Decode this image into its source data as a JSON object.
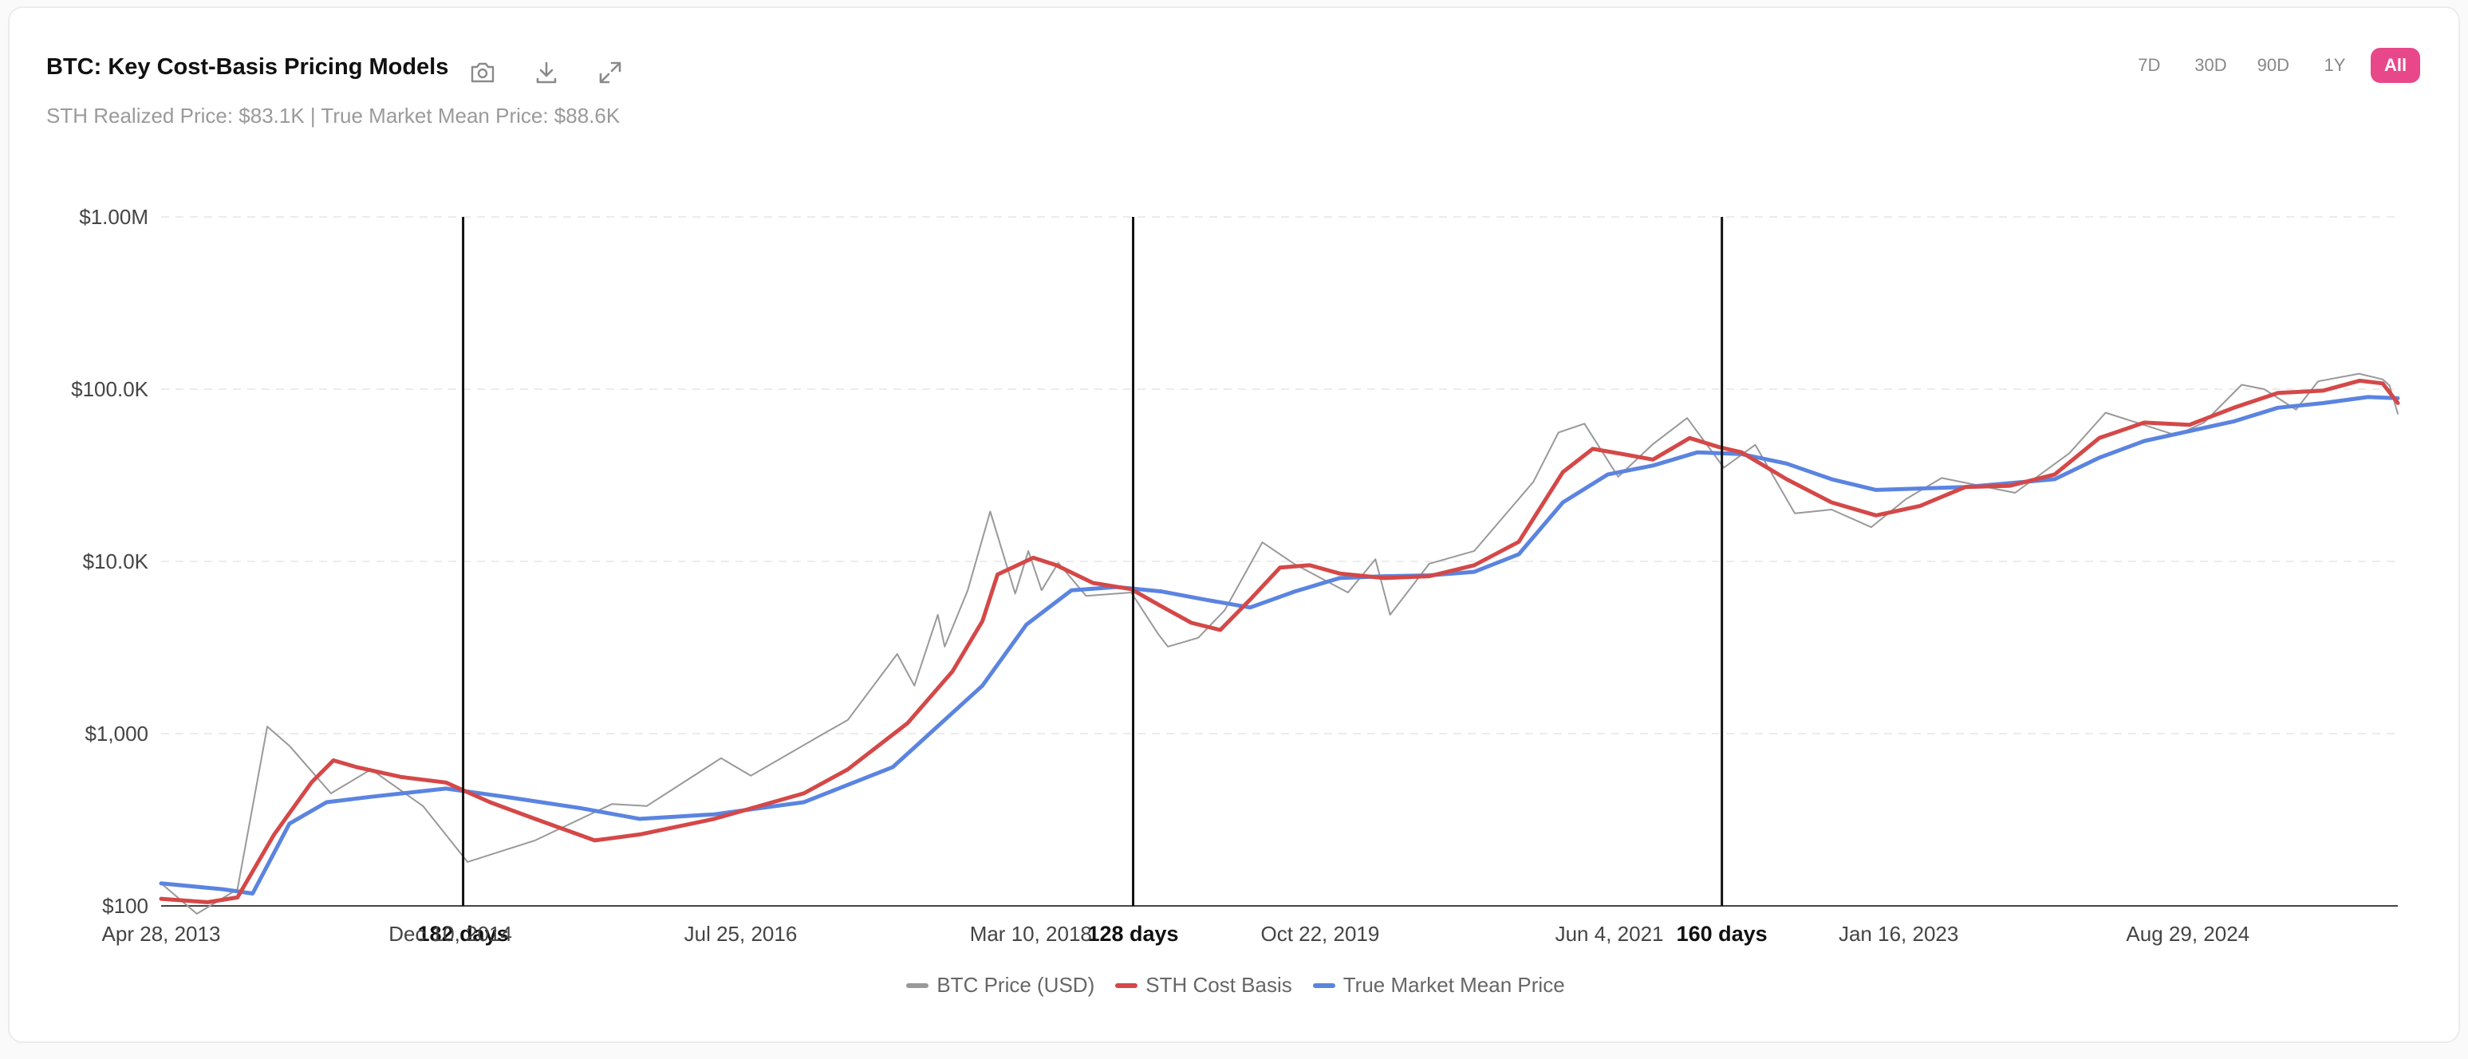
{
  "header": {
    "title": "BTC: Key Cost-Basis Pricing Models",
    "subtitle": "STH Realized Price: $83.1K | True Market Mean Price: $88.6K"
  },
  "toolbar": {
    "icons": [
      "camera-icon",
      "download-icon",
      "expand-icon"
    ]
  },
  "ranges": [
    {
      "label": "7D",
      "active": false
    },
    {
      "label": "30D",
      "active": false
    },
    {
      "label": "90D",
      "active": false
    },
    {
      "label": "1Y",
      "active": false
    },
    {
      "label": "All",
      "active": true
    }
  ],
  "colors": {
    "btc": "#999999",
    "sth": "#d44848",
    "tmm": "#5b84e0",
    "accent": "#e8488a"
  },
  "chart_data": {
    "type": "line",
    "title": "BTC: Key Cost-Basis Pricing Models",
    "y_scale": "log",
    "ylim": [
      100,
      1000000
    ],
    "xlim": [
      "2013-04-28",
      "2025-11-01"
    ],
    "y_ticks": [
      {
        "v": 100,
        "label": "$100"
      },
      {
        "v": 1000,
        "label": "$1,000"
      },
      {
        "v": 10000,
        "label": "$10.0K"
      },
      {
        "v": 100000,
        "label": "$100.0K"
      },
      {
        "v": 1000000,
        "label": "$1.00M"
      }
    ],
    "x_ticks": [
      {
        "date": "2013-04-28",
        "label": "Apr 28, 2013"
      },
      {
        "date": "2014-12-10",
        "label": "Dec 10, 2014"
      },
      {
        "date": "2016-07-25",
        "label": "Jul 25, 2016"
      },
      {
        "date": "2018-03-10",
        "label": "Mar 10, 2018"
      },
      {
        "date": "2019-10-22",
        "label": "Oct 22, 2019"
      },
      {
        "date": "2021-06-04",
        "label": "Jun 4, 2021"
      },
      {
        "date": "2023-01-16",
        "label": "Jan 16, 2023"
      },
      {
        "date": "2024-08-29",
        "label": "Aug 29, 2024"
      }
    ],
    "annotations": [
      {
        "date": "2015-01-05",
        "label": "182 days"
      },
      {
        "date": "2018-10-05",
        "label": "128 days"
      },
      {
        "date": "2022-01-20",
        "label": "160 days"
      }
    ],
    "legend_position": "bottom",
    "series": [
      {
        "name": "BTC Price (USD)",
        "key": "btc",
        "points": [
          [
            "2013-04-28",
            135
          ],
          [
            "2013-07-10",
            90
          ],
          [
            "2013-10-01",
            125
          ],
          [
            "2013-12-01",
            1100
          ],
          [
            "2014-01-15",
            850
          ],
          [
            "2014-04-10",
            450
          ],
          [
            "2014-07-01",
            620
          ],
          [
            "2014-10-15",
            380
          ],
          [
            "2015-01-14",
            180
          ],
          [
            "2015-06-01",
            240
          ],
          [
            "2015-11-05",
            390
          ],
          [
            "2016-01-15",
            380
          ],
          [
            "2016-06-15",
            720
          ],
          [
            "2016-08-15",
            570
          ],
          [
            "2016-12-31",
            960
          ],
          [
            "2017-03-01",
            1200
          ],
          [
            "2017-06-10",
            2900
          ],
          [
            "2017-07-15",
            1900
          ],
          [
            "2017-09-01",
            4900
          ],
          [
            "2017-09-15",
            3200
          ],
          [
            "2017-11-01",
            6800
          ],
          [
            "2017-12-17",
            19500
          ],
          [
            "2018-02-06",
            6500
          ],
          [
            "2018-03-05",
            11500
          ],
          [
            "2018-04-01",
            6800
          ],
          [
            "2018-05-05",
            9800
          ],
          [
            "2018-07-01",
            6300
          ],
          [
            "2018-10-01",
            6600
          ],
          [
            "2018-11-25",
            3800
          ],
          [
            "2018-12-15",
            3200
          ],
          [
            "2019-02-15",
            3600
          ],
          [
            "2019-04-10",
            5200
          ],
          [
            "2019-06-26",
            12900
          ],
          [
            "2019-09-01",
            9600
          ],
          [
            "2019-12-18",
            6600
          ],
          [
            "2020-02-12",
            10300
          ],
          [
            "2020-03-13",
            4900
          ],
          [
            "2020-06-01",
            9700
          ],
          [
            "2020-09-01",
            11500
          ],
          [
            "2020-12-31",
            29000
          ],
          [
            "2021-02-20",
            56000
          ],
          [
            "2021-04-14",
            63000
          ],
          [
            "2021-06-22",
            31000
          ],
          [
            "2021-09-01",
            48000
          ],
          [
            "2021-11-10",
            68000
          ],
          [
            "2022-01-24",
            35000
          ],
          [
            "2022-03-29",
            47500
          ],
          [
            "2022-06-18",
            19000
          ],
          [
            "2022-09-01",
            20000
          ],
          [
            "2022-11-21",
            15800
          ],
          [
            "2023-01-31",
            23000
          ],
          [
            "2023-04-14",
            30500
          ],
          [
            "2023-09-11",
            25000
          ],
          [
            "2023-12-31",
            42500
          ],
          [
            "2024-03-14",
            73000
          ],
          [
            "2024-08-05",
            54000
          ],
          [
            "2024-10-01",
            64000
          ],
          [
            "2024-12-17",
            106000
          ],
          [
            "2025-02-01",
            100000
          ],
          [
            "2025-04-07",
            76000
          ],
          [
            "2025-05-22",
            111000
          ],
          [
            "2025-08-14",
            123000
          ],
          [
            "2025-10-01",
            114000
          ],
          [
            "2025-10-15",
            105000
          ],
          [
            "2025-11-01",
            72000
          ]
        ]
      },
      {
        "name": "STH Cost Basis",
        "key": "sth",
        "points": [
          [
            "2013-04-28",
            110
          ],
          [
            "2013-08-01",
            105
          ],
          [
            "2013-10-01",
            112
          ],
          [
            "2013-12-15",
            260
          ],
          [
            "2014-03-01",
            520
          ],
          [
            "2014-04-15",
            700
          ],
          [
            "2014-06-01",
            640
          ],
          [
            "2014-09-01",
            560
          ],
          [
            "2014-12-01",
            520
          ],
          [
            "2015-03-01",
            400
          ],
          [
            "2015-06-01",
            320
          ],
          [
            "2015-10-01",
            240
          ],
          [
            "2016-01-01",
            260
          ],
          [
            "2016-06-01",
            320
          ],
          [
            "2016-12-01",
            450
          ],
          [
            "2017-03-01",
            620
          ],
          [
            "2017-07-01",
            1150
          ],
          [
            "2017-10-01",
            2300
          ],
          [
            "2017-12-01",
            4500
          ],
          [
            "2018-01-01",
            8400
          ],
          [
            "2018-03-15",
            10500
          ],
          [
            "2018-05-01",
            9500
          ],
          [
            "2018-07-15",
            7500
          ],
          [
            "2018-10-01",
            6900
          ],
          [
            "2018-12-01",
            5500
          ],
          [
            "2019-02-01",
            4400
          ],
          [
            "2019-04-01",
            4000
          ],
          [
            "2019-06-01",
            6000
          ],
          [
            "2019-08-01",
            9200
          ],
          [
            "2019-10-01",
            9500
          ],
          [
            "2019-12-01",
            8500
          ],
          [
            "2020-03-01",
            8000
          ],
          [
            "2020-06-01",
            8200
          ],
          [
            "2020-09-01",
            9500
          ],
          [
            "2020-12-01",
            13000
          ],
          [
            "2021-03-01",
            33000
          ],
          [
            "2021-05-01",
            45000
          ],
          [
            "2021-07-01",
            42000
          ],
          [
            "2021-09-01",
            39000
          ],
          [
            "2021-11-15",
            52000
          ],
          [
            "2022-01-15",
            46000
          ],
          [
            "2022-03-01",
            43000
          ],
          [
            "2022-06-01",
            30000
          ],
          [
            "2022-09-01",
            22000
          ],
          [
            "2022-12-01",
            18500
          ],
          [
            "2023-03-01",
            21000
          ],
          [
            "2023-06-01",
            27000
          ],
          [
            "2023-09-01",
            27500
          ],
          [
            "2023-12-01",
            32000
          ],
          [
            "2024-03-01",
            52000
          ],
          [
            "2024-06-01",
            64000
          ],
          [
            "2024-09-01",
            62000
          ],
          [
            "2024-12-01",
            78000
          ],
          [
            "2025-03-01",
            95000
          ],
          [
            "2025-06-01",
            98000
          ],
          [
            "2025-08-15",
            112000
          ],
          [
            "2025-10-01",
            108000
          ],
          [
            "2025-11-01",
            83100
          ]
        ]
      },
      {
        "name": "True Market Mean Price",
        "key": "tmm",
        "points": [
          [
            "2013-04-28",
            135
          ],
          [
            "2013-09-01",
            125
          ],
          [
            "2013-11-01",
            118
          ],
          [
            "2014-01-15",
            300
          ],
          [
            "2014-04-01",
            400
          ],
          [
            "2014-07-01",
            430
          ],
          [
            "2014-12-01",
            480
          ],
          [
            "2015-04-01",
            430
          ],
          [
            "2015-09-01",
            370
          ],
          [
            "2016-01-01",
            320
          ],
          [
            "2016-06-01",
            340
          ],
          [
            "2016-12-01",
            400
          ],
          [
            "2017-06-01",
            640
          ],
          [
            "2017-12-01",
            1900
          ],
          [
            "2018-03-01",
            4300
          ],
          [
            "2018-06-01",
            6800
          ],
          [
            "2018-09-01",
            7100
          ],
          [
            "2018-12-01",
            6700
          ],
          [
            "2019-03-01",
            6000
          ],
          [
            "2019-06-01",
            5400
          ],
          [
            "2019-09-01",
            6700
          ],
          [
            "2019-12-01",
            8000
          ],
          [
            "2020-03-01",
            8200
          ],
          [
            "2020-06-01",
            8300
          ],
          [
            "2020-09-01",
            8700
          ],
          [
            "2020-12-01",
            11000
          ],
          [
            "2021-03-01",
            22000
          ],
          [
            "2021-06-01",
            32000
          ],
          [
            "2021-09-01",
            36000
          ],
          [
            "2021-12-01",
            43000
          ],
          [
            "2022-03-01",
            42000
          ],
          [
            "2022-06-01",
            37000
          ],
          [
            "2022-09-01",
            30000
          ],
          [
            "2022-12-01",
            26000
          ],
          [
            "2023-06-01",
            27000
          ],
          [
            "2023-12-01",
            30000
          ],
          [
            "2024-03-01",
            40000
          ],
          [
            "2024-06-01",
            50000
          ],
          [
            "2024-12-01",
            65000
          ],
          [
            "2025-03-01",
            78000
          ],
          [
            "2025-06-01",
            83000
          ],
          [
            "2025-09-01",
            90000
          ],
          [
            "2025-11-01",
            88600
          ]
        ]
      }
    ]
  }
}
